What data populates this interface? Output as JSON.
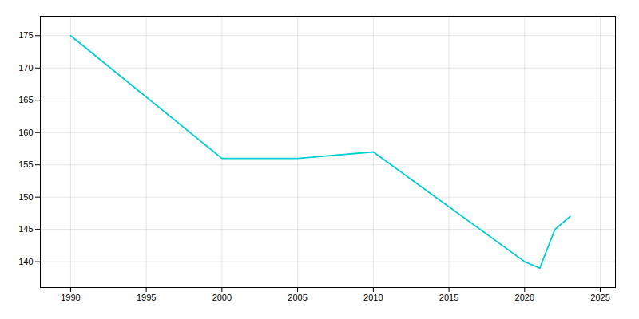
{
  "chart_data": {
    "type": "line",
    "x": [
      1990,
      2000,
      2005,
      2010,
      2020,
      2021,
      2022,
      2023
    ],
    "values": [
      175,
      156,
      156,
      157,
      140,
      139,
      145,
      147
    ],
    "color": "#00CED1",
    "xlim": [
      1988,
      2026
    ],
    "ylim": [
      136,
      178
    ],
    "xticks": [
      1990,
      1995,
      2000,
      2005,
      2010,
      2015,
      2020,
      2025
    ],
    "yticks": [
      140,
      145,
      150,
      155,
      160,
      165,
      170,
      175
    ],
    "grid": true
  }
}
